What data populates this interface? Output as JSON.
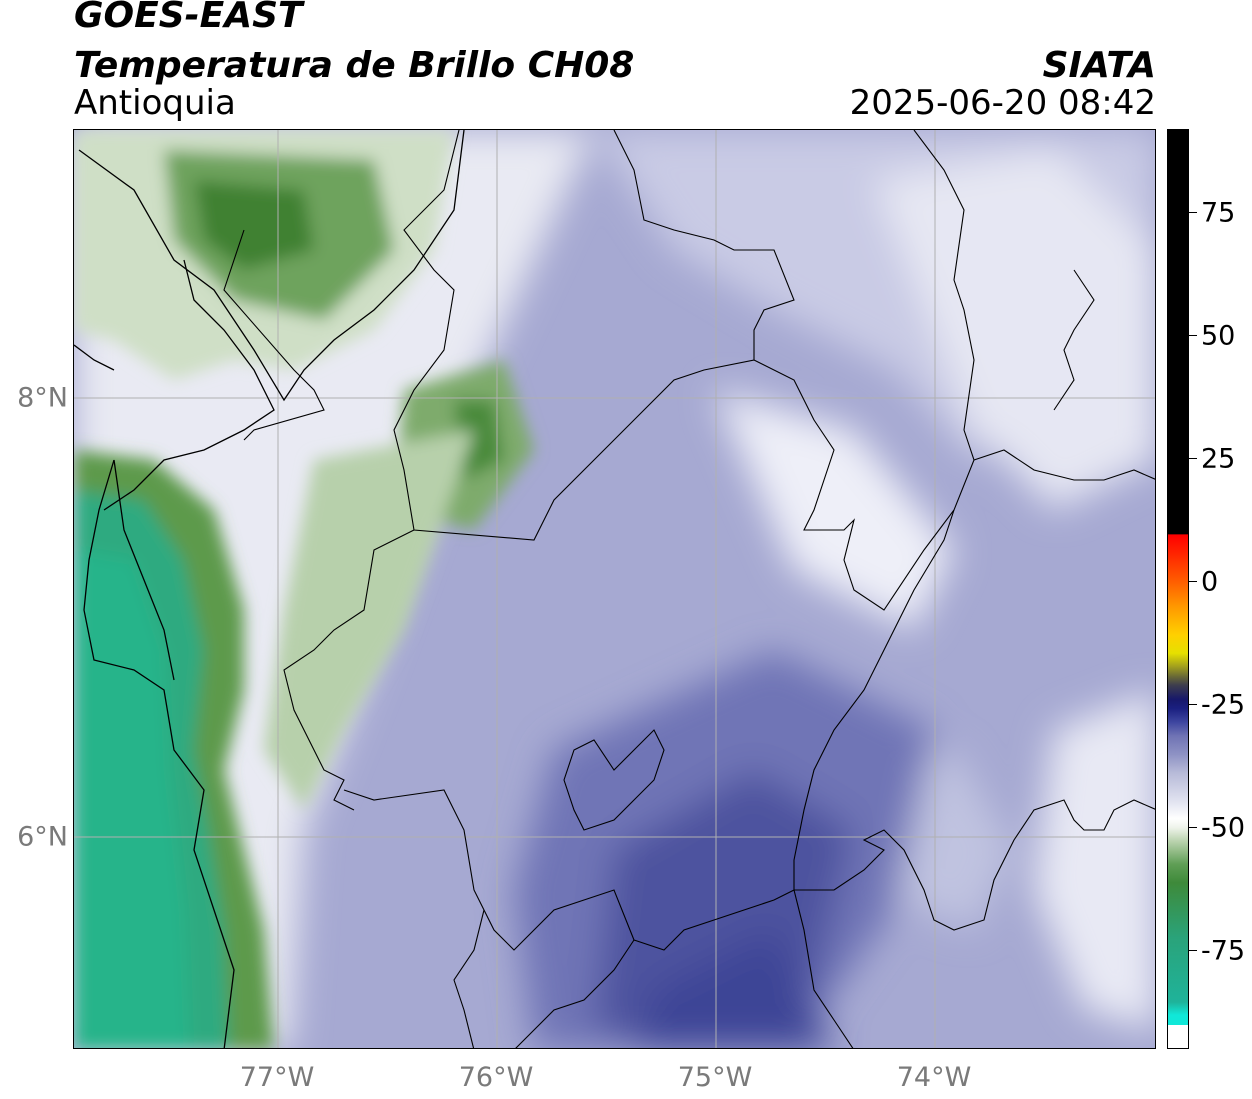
{
  "header": {
    "title_line1": "GOES-EAST",
    "title_line2": "Temperatura de Brillo CH08",
    "region": "Antioquia",
    "organization": "SIATA",
    "timestamp": "2025-06-20 08:42"
  },
  "map": {
    "longitude_labels": [
      "77°W",
      "76°W",
      "75°W",
      "74°W"
    ],
    "latitude_labels": [
      "8°N",
      "6°N"
    ],
    "colors": {
      "cold_cloud": "#4a4f9e",
      "mid_cloud": "#9a9dcc",
      "pale": "#ffffff",
      "green": "#4f8f3f",
      "dark_green": "#3e7e2e",
      "teal": "#2fae86",
      "border_line": "#000000",
      "grid_line": "#b0b0b0"
    }
  },
  "colorbar": {
    "tick_labels": [
      "75",
      "50",
      "25",
      "0",
      "-25",
      "-50",
      "-75"
    ],
    "tick_values": [
      75,
      50,
      25,
      0,
      -25,
      -50,
      -75
    ],
    "range": [
      -95,
      92
    ]
  }
}
